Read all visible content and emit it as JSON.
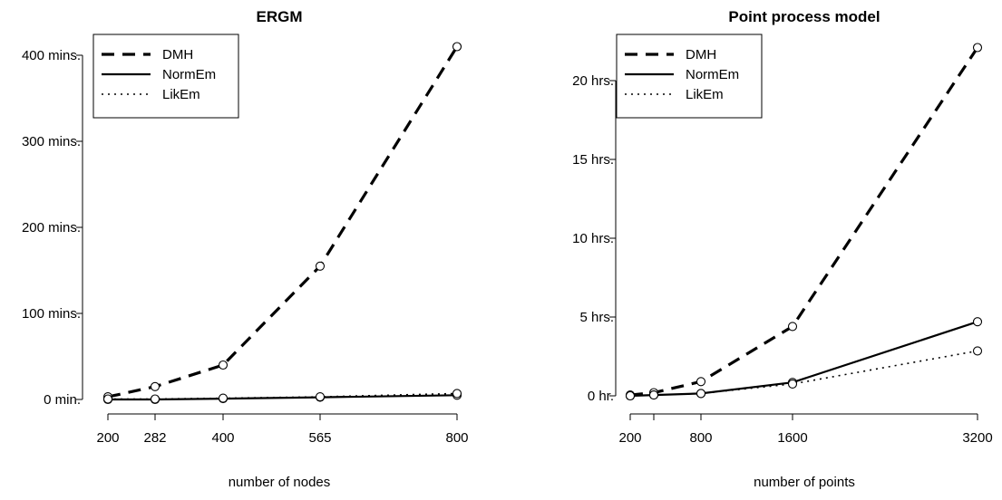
{
  "chart_data": [
    {
      "type": "line",
      "title": "ERGM",
      "xlabel": "number of nodes",
      "ylabel": "",
      "x": [
        200,
        282,
        400,
        565,
        800
      ],
      "x_ticks": [
        "200",
        "282",
        "400",
        "565",
        "800"
      ],
      "y_ticks": [
        {
          "value": 0,
          "label": "0 min."
        },
        {
          "value": 100,
          "label": "100 mins."
        },
        {
          "value": 200,
          "label": "200 mins."
        },
        {
          "value": 300,
          "label": "300 mins."
        },
        {
          "value": 400,
          "label": "400 mins."
        }
      ],
      "ylim": [
        0,
        410
      ],
      "legend_position": "top-left",
      "series": [
        {
          "name": "DMH",
          "style": "dashed",
          "values": [
            3,
            15,
            40,
            155,
            410
          ]
        },
        {
          "name": "NormEm",
          "style": "solid",
          "values": [
            0,
            0,
            1,
            2.5,
            5
          ]
        },
        {
          "name": "LikEm",
          "style": "dotted",
          "values": [
            0.5,
            0.5,
            1.5,
            3,
            7
          ]
        }
      ]
    },
    {
      "type": "line",
      "title": "Point process model",
      "xlabel": "number of points",
      "ylabel": "",
      "x": [
        200,
        400,
        800,
        1600,
        3200
      ],
      "x_ticks": [
        "200",
        "800",
        "1600",
        "3200"
      ],
      "y_ticks": [
        {
          "value": 0,
          "label": "0 hr."
        },
        {
          "value": 5,
          "label": "5 hrs."
        },
        {
          "value": 10,
          "label": "10 hrs."
        },
        {
          "value": 15,
          "label": "15 hrs."
        },
        {
          "value": 20,
          "label": "20 hrs."
        }
      ],
      "ylim": [
        0,
        22
      ],
      "legend_position": "top-left",
      "series": [
        {
          "name": "DMH",
          "style": "dashed",
          "values": [
            0.05,
            0.2,
            0.9,
            4.4,
            22.1
          ]
        },
        {
          "name": "NormEm",
          "style": "solid",
          "values": [
            0.0,
            0.05,
            0.15,
            0.85,
            4.7
          ]
        },
        {
          "name": "LikEm",
          "style": "dotted",
          "values": [
            0.0,
            0.05,
            0.15,
            0.75,
            2.85
          ]
        }
      ]
    }
  ]
}
